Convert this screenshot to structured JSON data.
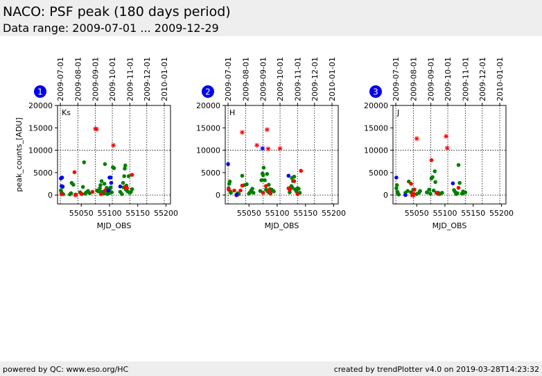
{
  "header": {
    "title": "NACO: PSF peak (180 days period)",
    "subtitle": "Data range: 2009-07-01 ... 2009-12-29"
  },
  "footer": {
    "left": "powered by QC: www.eso.org/HC",
    "right": "created by trendPlotter v4.0 on 2019-03-28T14:23:32"
  },
  "colors": {
    "green": "#007f00",
    "red": "#ff0000",
    "blue": "#0000ff",
    "badge": "#0000ee"
  },
  "chart_data": [
    {
      "type": "scatter",
      "badge": "1",
      "band": "Ks",
      "xlabel": "MJD_OBS",
      "ylabel": "peak_counts_[ADU]",
      "xlim": [
        55008,
        55208
      ],
      "ylim": [
        -2000,
        20000
      ],
      "xticks": [
        55050,
        55100,
        55150,
        55200
      ],
      "yticks": [
        0,
        5000,
        10000,
        15000,
        20000
      ],
      "date_ticks": [
        "2009-07-01",
        "2009-08-01",
        "2009-09-01",
        "2009-10-01",
        "2009-11-01",
        "2009-12-01",
        "2010-01-01"
      ],
      "date_mjd": [
        55013,
        55044,
        55075,
        55105,
        55136,
        55166,
        55197
      ],
      "reference_line": 10000,
      "series": [
        {
          "color": "green",
          "marker": "dot",
          "points": [
            [
              55014,
              1000
            ],
            [
              55015,
              600
            ],
            [
              55016,
              300
            ],
            [
              55017,
              1800
            ],
            [
              55018,
              200
            ],
            [
              55030,
              150
            ],
            [
              55032,
              400
            ],
            [
              55033,
              2700
            ],
            [
              55036,
              2300
            ],
            [
              55048,
              600
            ],
            [
              55051,
              200
            ],
            [
              55053,
              1800
            ],
            [
              55055,
              7300
            ],
            [
              55057,
              300
            ],
            [
              55059,
              600
            ],
            [
              55062,
              900
            ],
            [
              55065,
              400
            ],
            [
              55078,
              1000
            ],
            [
              55080,
              800
            ],
            [
              55082,
              900
            ],
            [
              55083,
              1500
            ],
            [
              55084,
              2200
            ],
            [
              55085,
              600
            ],
            [
              55086,
              3100
            ],
            [
              55087,
              700
            ],
            [
              55088,
              400
            ],
            [
              55090,
              300
            ],
            [
              55091,
              2500
            ],
            [
              55092,
              6900
            ],
            [
              55094,
              1000
            ],
            [
              55095,
              1600
            ],
            [
              55096,
              200
            ],
            [
              55097,
              500
            ],
            [
              55098,
              300
            ],
            [
              55099,
              800
            ],
            [
              55100,
              1200
            ],
            [
              55101,
              500
            ],
            [
              55102,
              1700
            ],
            [
              55104,
              600
            ],
            [
              55106,
              6200
            ],
            [
              55108,
              6000
            ],
            [
              55119,
              700
            ],
            [
              55122,
              200
            ],
            [
              55124,
              2700
            ],
            [
              55125,
              1700
            ],
            [
              55126,
              4200
            ],
            [
              55127,
              5900
            ],
            [
              55128,
              6600
            ],
            [
              55129,
              1200
            ],
            [
              55130,
              2100
            ],
            [
              55132,
              800
            ],
            [
              55134,
              4200
            ],
            [
              55136,
              500
            ],
            [
              55138,
              700
            ],
            [
              55140,
              1300
            ]
          ]
        },
        {
          "color": "red",
          "marker": "dot",
          "points": [
            [
              55015,
              200
            ],
            [
              55038,
              5100
            ],
            [
              55040,
              100
            ],
            [
              55050,
              300
            ],
            [
              55070,
              700
            ],
            [
              55085,
              200
            ],
            [
              55092,
              1000
            ],
            [
              55131,
              1500
            ],
            [
              55140,
              4500
            ],
            [
              55128,
              1800
            ]
          ]
        },
        {
          "color": "red",
          "marker": "x",
          "points": [
            [
              55075,
              14800
            ],
            [
              55077,
              14700
            ],
            [
              55107,
              11100
            ],
            [
              55040,
              -50
            ]
          ]
        },
        {
          "color": "blue",
          "marker": "dot",
          "points": [
            [
              55014,
              3700
            ],
            [
              55016,
              3900
            ],
            [
              55015,
              2000
            ],
            [
              55017,
              1900
            ],
            [
              55098,
              1000
            ],
            [
              55100,
              3900
            ],
            [
              55102,
              3900
            ],
            [
              55103,
              2700
            ],
            [
              55119,
              1900
            ]
          ]
        }
      ]
    },
    {
      "type": "scatter",
      "badge": "2",
      "band": "H",
      "xlabel": "MJD_OBS",
      "ylabel": "",
      "xlim": [
        55008,
        55208
      ],
      "ylim": [
        -2000,
        20000
      ],
      "xticks": [
        55050,
        55100,
        55150,
        55200
      ],
      "yticks": [
        0,
        5000,
        10000,
        15000,
        20000
      ],
      "date_ticks": [
        "2009-07-01",
        "2009-08-01",
        "2009-09-01",
        "2009-10-01",
        "2009-11-01",
        "2009-12-01",
        "2010-01-01"
      ],
      "date_mjd": [
        55013,
        55044,
        55075,
        55105,
        55136,
        55166,
        55197
      ],
      "reference_line": 10000,
      "series": [
        {
          "color": "green",
          "marker": "dot",
          "points": [
            [
              55014,
              1500
            ],
            [
              55015,
              2500
            ],
            [
              55016,
              3000
            ],
            [
              55017,
              800
            ],
            [
              55018,
              500
            ],
            [
              55030,
              400
            ],
            [
              55032,
              200
            ],
            [
              55038,
              4300
            ],
            [
              55042,
              2200
            ],
            [
              55046,
              2400
            ],
            [
              55050,
              300
            ],
            [
              55052,
              600
            ],
            [
              55054,
              1000
            ],
            [
              55056,
              1400
            ],
            [
              55058,
              500
            ],
            [
              55070,
              900
            ],
            [
              55072,
              3300
            ],
            [
              55074,
              4800
            ],
            [
              55075,
              4400
            ],
            [
              55076,
              6100
            ],
            [
              55078,
              3300
            ],
            [
              55080,
              1200
            ],
            [
              55082,
              4700
            ],
            [
              55083,
              800
            ],
            [
              55085,
              2300
            ],
            [
              55086,
              500
            ],
            [
              55087,
              1300
            ],
            [
              55088,
              900
            ],
            [
              55090,
              1200
            ],
            [
              55092,
              1000
            ],
            [
              55094,
              800
            ],
            [
              55122,
              600
            ],
            [
              55125,
              2000
            ],
            [
              55126,
              3800
            ],
            [
              55127,
              1600
            ],
            [
              55128,
              3100
            ],
            [
              55130,
              4100
            ],
            [
              55132,
              1200
            ],
            [
              55134,
              800
            ],
            [
              55136,
              1500
            ],
            [
              55138,
              1400
            ],
            [
              55140,
              500
            ]
          ]
        },
        {
          "color": "red",
          "marker": "dot",
          "points": [
            [
              55014,
              1200
            ],
            [
              55024,
              1000
            ],
            [
              55035,
              1000
            ],
            [
              55038,
              2100
            ],
            [
              55075,
              500
            ],
            [
              55080,
              2000
            ],
            [
              55085,
              1100
            ],
            [
              55088,
              300
            ],
            [
              55120,
              1500
            ],
            [
              55122,
              1200
            ],
            [
              55130,
              3100
            ],
            [
              55136,
              200
            ],
            [
              55142,
              5400
            ]
          ]
        },
        {
          "color": "red",
          "marker": "x",
          "points": [
            [
              55038,
              14000
            ],
            [
              55064,
              11100
            ],
            [
              55082,
              14600
            ],
            [
              55084,
              10300
            ],
            [
              55105,
              10400
            ],
            [
              55028,
              -50
            ]
          ]
        },
        {
          "color": "blue",
          "marker": "dot",
          "points": [
            [
              55013,
              6900
            ],
            [
              55120,
              4300
            ],
            [
              55028,
              50
            ]
          ]
        },
        {
          "color": "blue",
          "marker": "x",
          "points": [
            [
              55074,
              10400
            ]
          ]
        }
      ]
    },
    {
      "type": "scatter",
      "badge": "3",
      "band": "J",
      "xlabel": "MJD_OBS",
      "ylabel": "",
      "xlim": [
        55008,
        55208
      ],
      "ylim": [
        -2000,
        20000
      ],
      "xticks": [
        55050,
        55100,
        55150,
        55200
      ],
      "yticks": [
        0,
        5000,
        10000,
        15000,
        20000
      ],
      "date_ticks": [
        "2009-07-01",
        "2009-08-01",
        "2009-09-01",
        "2009-10-01",
        "2009-11-01",
        "2009-12-01",
        "2010-01-01"
      ],
      "date_mjd": [
        55013,
        55044,
        55075,
        55105,
        55136,
        55166,
        55197
      ],
      "reference_line": 10000,
      "series": [
        {
          "color": "green",
          "marker": "dot",
          "points": [
            [
              55014,
              1500
            ],
            [
              55015,
              2200
            ],
            [
              55016,
              700
            ],
            [
              55017,
              300
            ],
            [
              55018,
              100
            ],
            [
              55030,
              500
            ],
            [
              55034,
              900
            ],
            [
              55036,
              3000
            ],
            [
              55040,
              600
            ],
            [
              55044,
              1200
            ],
            [
              55050,
              200
            ],
            [
              55054,
              500
            ],
            [
              55056,
              900
            ],
            [
              55068,
              600
            ],
            [
              55072,
              1200
            ],
            [
              55074,
              300
            ],
            [
              55076,
              3700
            ],
            [
              55078,
              4000
            ],
            [
              55080,
              1000
            ],
            [
              55082,
              5300
            ],
            [
              55083,
              2900
            ],
            [
              55085,
              500
            ],
            [
              55087,
              300
            ],
            [
              55088,
              500
            ],
            [
              55090,
              200
            ],
            [
              55092,
              300
            ],
            [
              55095,
              500
            ],
            [
              55116,
              1100
            ],
            [
              55118,
              700
            ],
            [
              55120,
              200
            ],
            [
              55122,
              400
            ],
            [
              55124,
              6700
            ],
            [
              55126,
              2700
            ],
            [
              55130,
              300
            ],
            [
              55132,
              800
            ],
            [
              55134,
              500
            ],
            [
              55136,
              600
            ]
          ]
        },
        {
          "color": "red",
          "marker": "dot",
          "points": [
            [
              55040,
              2500
            ],
            [
              55044,
              300
            ],
            [
              55046,
              1200
            ],
            [
              55076,
              7800
            ],
            [
              55086,
              400
            ],
            [
              55124,
              1600
            ]
          ]
        },
        {
          "color": "red",
          "marker": "x",
          "points": [
            [
              55050,
              12600
            ],
            [
              55102,
              13100
            ],
            [
              55104,
              10500
            ],
            [
              55042,
              -50
            ],
            [
              55044,
              -50
            ]
          ]
        },
        {
          "color": "blue",
          "marker": "dot",
          "points": [
            [
              55014,
              3900
            ],
            [
              55030,
              0
            ],
            [
              55114,
              2600
            ]
          ]
        }
      ]
    }
  ]
}
